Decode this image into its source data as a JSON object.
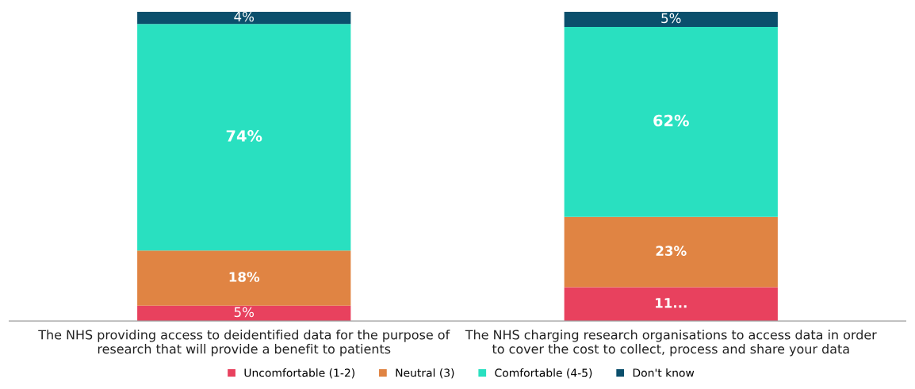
{
  "chart_data": {
    "type": "bar",
    "stacked": true,
    "categories": [
      "The NHS providing access to deidentified data for the purpose of\nresearch that will provide a benefit to patients",
      "The NHS charging research organisations to access data in order\nto cover the cost to collect, process and share your data"
    ],
    "series": [
      {
        "name": "Uncomfortable (1-2)",
        "color": "#e8415e",
        "values": [
          5,
          11
        ],
        "value_labels": [
          "5%",
          "11..."
        ]
      },
      {
        "name": "Neutral (3)",
        "color": "#e08443",
        "values": [
          18,
          23
        ],
        "value_labels": [
          "18%",
          "23%"
        ]
      },
      {
        "name": "Comfortable (4-5)",
        "color": "#29e0c0",
        "values": [
          74,
          62
        ],
        "value_labels": [
          "74%",
          "62%"
        ]
      },
      {
        "name": "Don't know",
        "color": "#0b4f6c",
        "values": [
          4,
          5
        ],
        "value_labels": [
          "4%",
          "5%"
        ]
      }
    ],
    "legend": "bottom",
    "grid": false
  }
}
